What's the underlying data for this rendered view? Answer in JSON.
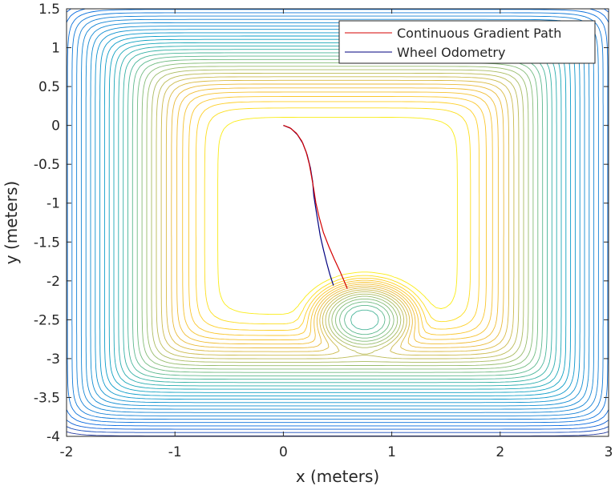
{
  "chart_data": {
    "type": "line",
    "title": "",
    "xlabel": "x (meters)",
    "ylabel": "y (meters)",
    "xlim": [
      -2,
      3
    ],
    "ylim": [
      -4,
      1.5
    ],
    "xticks": [
      -2,
      -1,
      0,
      1,
      2,
      3
    ],
    "yticks": [
      1.5,
      1,
      0.5,
      0,
      -0.5,
      -1,
      -1.5,
      -2,
      -2.5,
      -3,
      -3.5,
      -4
    ],
    "xtick_labels": [
      "-2",
      "-1",
      "0",
      "1",
      "2",
      "3"
    ],
    "ytick_labels": [
      "1.5",
      "1",
      "0.5",
      "0",
      "-0.5",
      "-1",
      "-1.5",
      "-2",
      "-2.5",
      "-3",
      "-3.5",
      "-4"
    ],
    "legend_position": "top-right",
    "grid": false,
    "background": "contour plot of a potential field (parula colormap), low values yellow in the room interior, high values blue near the walls",
    "series": [
      {
        "name": "Continuous Gradient Path",
        "color": "#d40000",
        "x": [
          0.0,
          0.06,
          0.12,
          0.17,
          0.21,
          0.24,
          0.26,
          0.28,
          0.3,
          0.33,
          0.37,
          0.42,
          0.47,
          0.52,
          0.56,
          0.59
        ],
        "y": [
          0.0,
          -0.03,
          -0.1,
          -0.2,
          -0.34,
          -0.5,
          -0.66,
          -0.82,
          -1.0,
          -1.18,
          -1.38,
          -1.56,
          -1.72,
          -1.87,
          -2.0,
          -2.1
        ]
      },
      {
        "name": "Wheel Odometry",
        "color": "#00007f",
        "x": [
          0.0,
          0.07,
          0.13,
          0.18,
          0.22,
          0.25,
          0.27,
          0.28,
          0.3,
          0.32,
          0.34,
          0.37,
          0.4,
          0.43,
          0.46,
          0.46
        ],
        "y": [
          0.0,
          -0.04,
          -0.12,
          -0.23,
          -0.38,
          -0.55,
          -0.72,
          -0.9,
          -1.08,
          -1.25,
          -1.42,
          -1.6,
          -1.77,
          -1.92,
          -2.05,
          -2.06
        ]
      }
    ]
  }
}
